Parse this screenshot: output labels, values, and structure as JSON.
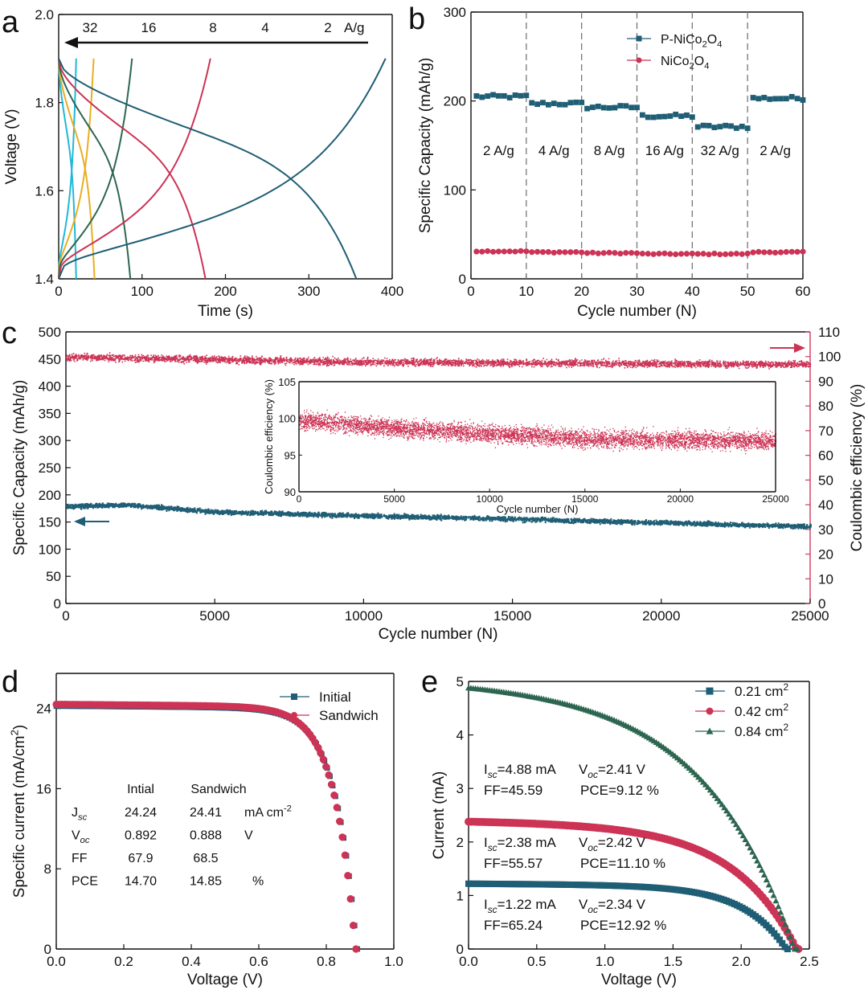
{
  "colors": {
    "teal": "#1f5e75",
    "crimson": "#cc3355",
    "green": "#2d6650",
    "cyan": "#1fb8d8",
    "gold": "#e9ae22",
    "red_text": "#d13b5f",
    "axis": "#111111"
  },
  "panels": {
    "a": "a",
    "b": "b",
    "c": "c",
    "d": "d",
    "e": "e"
  },
  "chart_data": [
    {
      "panel": "a",
      "type": "line",
      "xlabel": "Time (s)",
      "ylabel": "Voltage (V)",
      "xlim": [
        0,
        400
      ],
      "ylim": [
        1.4,
        2.0
      ],
      "xticks": [
        "0",
        "100",
        "200",
        "300",
        "400"
      ],
      "yticks": [
        "1.4",
        "1.6",
        "1.8",
        "2.0"
      ],
      "annotations": {
        "rates": [
          "32",
          "16",
          "8",
          "4",
          "2"
        ],
        "unit": "A/g"
      },
      "series": [
        {
          "name": "32",
          "color": "#1fb8d8",
          "charge_end": 21,
          "discharge_end": 21
        },
        {
          "name": "16",
          "color": "#e9ae22",
          "charge_end": 42,
          "discharge_end": 43
        },
        {
          "name": "8",
          "color": "#2d6650",
          "charge_end": 88,
          "discharge_end": 86
        },
        {
          "name": "4",
          "color": "#cc3355",
          "charge_end": 182,
          "discharge_end": 176
        },
        {
          "name": "2",
          "color": "#1f5e75",
          "charge_end": 392,
          "discharge_end": 357
        }
      ]
    },
    {
      "panel": "b",
      "type": "scatter",
      "xlabel": "Cycle  number (N)",
      "ylabel": "Specific Capacity (mAh/g)",
      "xlim": [
        0,
        60
      ],
      "ylim": [
        0,
        300
      ],
      "xticks": [
        "0",
        "10",
        "20",
        "30",
        "40",
        "50",
        "60"
      ],
      "yticks": [
        "0",
        "100",
        "200",
        "300"
      ],
      "rate_labels": [
        "2 A/g",
        "4 A/g",
        "8 A/g",
        "16 A/g",
        "32 A/g",
        "2 A/g"
      ],
      "segment_boundaries": [
        10,
        20,
        30,
        40,
        50
      ],
      "series": [
        {
          "name": "P-NiCo2O4",
          "legend_main": "P-NiCo",
          "legend_sub1": "2",
          "legend_mid": "O",
          "legend_sub2": "4",
          "marker": "square",
          "color": "#1f5e75",
          "segment_levels": [
            205,
            197,
            193,
            183,
            171,
            203
          ]
        },
        {
          "name": "NiCo2O4",
          "legend_main": "NiCo",
          "legend_sub1": "2",
          "legend_mid": "O",
          "legend_sub2": "4",
          "marker": "circle",
          "color": "#cc3355",
          "segment_levels": [
            31,
            30,
            29,
            28,
            28,
            30
          ]
        }
      ]
    },
    {
      "panel": "c",
      "type": "scatter",
      "xlabel": "Cycle number (N)",
      "ylabel": "Specific Capacity (mAh/g)",
      "ylabel_right": "Coulombic efficiency (%)",
      "xlim": [
        0,
        25000
      ],
      "ylim": [
        0,
        500
      ],
      "ylim_right": [
        0,
        110
      ],
      "xticks": [
        "0",
        "5000",
        "10000",
        "15000",
        "20000",
        "25000"
      ],
      "yticks": [
        "0",
        "50",
        "100",
        "150",
        "200",
        "250",
        "300",
        "350",
        "400",
        "450",
        "500"
      ],
      "yticks_right": [
        "0",
        "10",
        "20",
        "30",
        "40",
        "50",
        "60",
        "70",
        "80",
        "90",
        "100",
        "110"
      ],
      "capacity_trend": {
        "x": [
          0,
          2000,
          5000,
          10000,
          15000,
          20000,
          25000
        ],
        "y": [
          180,
          183,
          170,
          163,
          157,
          150,
          143
        ]
      },
      "efficiency_trend": {
        "x": [
          0,
          10000,
          25000
        ],
        "y": [
          100,
          98,
          97
        ]
      },
      "inset": {
        "xlabel": "Cycle number (N)",
        "ylabel": "Coulombic efficiency (%)",
        "xlim": [
          0,
          25000
        ],
        "ylim": [
          90,
          105
        ],
        "xticks": [
          "0",
          "5000",
          "10000",
          "15000",
          "20000",
          "25000"
        ],
        "yticks": [
          "90",
          "95",
          "100",
          "105"
        ],
        "trend": {
          "x": [
            0,
            5000,
            10000,
            15000,
            20000,
            25000
          ],
          "y": [
            99.8,
            98.7,
            98.0,
            97.3,
            97.1,
            97.0
          ]
        }
      }
    },
    {
      "panel": "d",
      "type": "line",
      "xlabel": "Voltage (V)",
      "ylabel": "Specific current (mA/cm",
      "ylabel_sup": "2",
      "xlim": [
        0,
        1.0
      ],
      "ylim": [
        0,
        27.5
      ],
      "xticks": [
        "0.0",
        "0.2",
        "0.4",
        "0.6",
        "0.8",
        "1.0"
      ],
      "yticks": [
        "0",
        "8",
        "16",
        "24"
      ],
      "series": [
        {
          "name": "Initial",
          "marker": "square",
          "color": "#1f5e75",
          "Jsc": 24.24,
          "Voc": 0.892,
          "FF": 67.9,
          "PCE": 14.7
        },
        {
          "name": "Sandwich",
          "marker": "circle",
          "color": "#cc3355",
          "Jsc": 24.41,
          "Voc": 0.888,
          "FF": 68.5,
          "PCE": 14.85
        }
      ],
      "table": {
        "headers": [
          "Intial",
          "Sandwich"
        ],
        "rows": [
          {
            "label": "J",
            "label_sub": "sc",
            "v1": "24.24",
            "v2": "24.41",
            "unit": "mA cm",
            "unit_sup": "-2"
          },
          {
            "label": "V",
            "label_sub": "oc",
            "v1": "0.892",
            "v2": "0.888",
            "unit": "V",
            "unit_sup": ""
          },
          {
            "label": "FF",
            "label_sub": "",
            "v1": "67.9",
            "v2": "68.5",
            "unit": "",
            "unit_sup": ""
          },
          {
            "label": "PCE",
            "label_sub": "",
            "v1": "14.70",
            "v2": "14.85",
            "unit": "%",
            "unit_sup": ""
          }
        ]
      }
    },
    {
      "panel": "e",
      "type": "line",
      "xlabel": "Voltage (V)",
      "ylabel": "Current (mA)",
      "xlim": [
        0,
        2.5
      ],
      "ylim": [
        0,
        5
      ],
      "xticks": [
        "0.0",
        "0.5",
        "1.0",
        "1.5",
        "2.0",
        "2.5"
      ],
      "yticks": [
        "0",
        "1",
        "2",
        "3",
        "4",
        "5"
      ],
      "series": [
        {
          "name": "0.21 cm2",
          "legend_main": "0.21 cm",
          "legend_sup": "2",
          "marker": "square",
          "color": "#1f5e75",
          "Isc": 1.22,
          "Voc": 2.34,
          "FF": 65.24,
          "PCE": 12.92,
          "line1_a": "I",
          "line1_a_sub": "sc",
          "line1_b": "=1.22 mA",
          "line1_c": "V",
          "line1_c_sub": "oc",
          "line1_d": "=2.34 V",
          "line2_a": "FF=65.24",
          "line2_b": "PCE=12.92 %"
        },
        {
          "name": "0.42 cm2",
          "legend_main": "0.42 cm",
          "legend_sup": "2",
          "marker": "circle",
          "color": "#cc3355",
          "Isc": 2.38,
          "Voc": 2.42,
          "FF": 55.57,
          "PCE": 11.1,
          "line1_a": "I",
          "line1_a_sub": "sc",
          "line1_b": "=2.38 mA",
          "line1_c": "V",
          "line1_c_sub": "oc",
          "line1_d": "=2.42 V",
          "line2_a": "FF=55.57",
          "line2_b": "PCE=11.10 %"
        },
        {
          "name": "0.84 cm2",
          "legend_main": "0.84 cm",
          "legend_sup": "2",
          "marker": "triangle",
          "color": "#2d6650",
          "Isc": 4.88,
          "Voc": 2.41,
          "FF": 45.59,
          "PCE": 9.12,
          "line1_a": "I",
          "line1_a_sub": "sc",
          "line1_b": "=4.88 mA",
          "line1_c": "V",
          "line1_c_sub": "oc",
          "line1_d": "=2.41 V",
          "line2_a": "FF=45.59",
          "line2_b": "PCE=9.12 %"
        }
      ]
    }
  ]
}
